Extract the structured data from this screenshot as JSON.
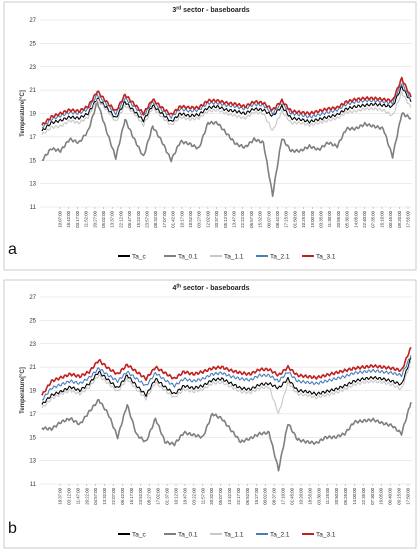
{
  "chart_data": [
    {
      "type": "line",
      "title": "3rd sector - baseboards",
      "title_parts": {
        "num": "3",
        "sup": "rd",
        "rest": " sector - baseboards"
      },
      "panel_label": "a",
      "ylabel": "Temperature[°C]",
      "ylim": [
        11,
        27
      ],
      "yticks": [
        "11",
        "13",
        "15",
        "17",
        "19",
        "21",
        "23",
        "25",
        "27"
      ],
      "grid": true,
      "legend_position": "bottom",
      "x_tick_labels": [
        "10:07:00",
        "18:42:00",
        "03:17:00",
        "11:52:00",
        "20:27:00",
        "05:02:00",
        "13:37:00",
        "22:12:00",
        "06:47:00",
        "15:22:00",
        "23:57:00",
        "08:32:00",
        "17:07:00",
        "01:42:00",
        "10:17:00",
        "18:52:00",
        "03:27:00",
        "12:02:00",
        "20:37:00",
        "05:12:00",
        "13:47:00",
        "22:22:00",
        "06:57:00",
        "15:32:00",
        "00:07:00",
        "08:42:00",
        "17:15:00",
        "01:50:00",
        "10:25:00",
        "19:00:00",
        "03:35:00",
        "11:30:00",
        "20:55:00",
        "05:30:00",
        "14:05:00",
        "22:40:00",
        "07:35:00",
        "16:10:00",
        "00:45:00",
        "09:20:00",
        "17:55:00"
      ],
      "series": [
        {
          "name": "Ta_c",
          "color": "#000000",
          "values": [
            17.5,
            18.2,
            18.4,
            18.7,
            18.6,
            19.0,
            20.3,
            19.5,
            18.6,
            20.0,
            19.2,
            18.4,
            19.7,
            19.0,
            18.3,
            19.0,
            18.8,
            18.9,
            19.5,
            19.6,
            19.3,
            19.2,
            19.0,
            19.4,
            19.3,
            18.8,
            19.6,
            18.6,
            18.5,
            18.3,
            18.5,
            18.7,
            18.9,
            19.4,
            19.6,
            19.7,
            19.8,
            19.7,
            19.6,
            21.3,
            20.0
          ]
        },
        {
          "name": "Ta_0.1",
          "color": "#7f7f7f",
          "values": [
            15.0,
            16.0,
            15.8,
            16.8,
            16.5,
            17.5,
            20.0,
            17.5,
            15.2,
            18.5,
            16.8,
            15.3,
            17.9,
            16.6,
            15.0,
            16.6,
            16.4,
            16.0,
            18.2,
            18.2,
            17.3,
            16.4,
            16.1,
            16.8,
            16.5,
            12.0,
            16.9,
            15.8,
            15.8,
            16.2,
            15.9,
            16.5,
            16.2,
            17.7,
            17.7,
            18.1,
            17.9,
            17.7,
            15.3,
            19.0,
            18.6
          ]
        },
        {
          "name": "Ta_1.1",
          "color": "#c8c8c8",
          "values": [
            17.2,
            17.8,
            17.9,
            18.4,
            18.2,
            18.7,
            20.2,
            19.3,
            18.3,
            19.7,
            19.0,
            18.0,
            19.5,
            18.7,
            18.0,
            18.7,
            18.5,
            18.6,
            19.2,
            19.3,
            19.0,
            18.8,
            18.6,
            19.1,
            19.0,
            17.5,
            19.2,
            18.2,
            18.2,
            18.0,
            18.2,
            18.4,
            18.6,
            19.1,
            19.2,
            19.4,
            19.4,
            19.3,
            18.8,
            20.8,
            19.5
          ]
        },
        {
          "name": "Ta_2.1",
          "color": "#4a7ebb",
          "values": [
            17.8,
            18.5,
            18.8,
            19.1,
            19.0,
            19.4,
            20.6,
            19.8,
            19.0,
            20.3,
            19.6,
            18.8,
            20.0,
            19.3,
            18.7,
            19.4,
            19.2,
            19.3,
            19.9,
            19.9,
            19.7,
            19.6,
            19.4,
            19.8,
            19.7,
            19.0,
            19.9,
            19.0,
            18.9,
            18.7,
            18.9,
            19.1,
            19.3,
            19.8,
            20.0,
            20.1,
            20.1,
            20.0,
            19.9,
            21.6,
            20.2
          ]
        },
        {
          "name": "Ta_3.1",
          "color": "#c0201e",
          "values": [
            18.0,
            18.7,
            19.0,
            19.3,
            19.2,
            19.6,
            20.9,
            20.0,
            19.2,
            20.6,
            19.8,
            19.0,
            20.2,
            19.5,
            18.9,
            19.6,
            19.5,
            19.5,
            20.1,
            20.1,
            19.9,
            19.8,
            19.6,
            20.0,
            19.9,
            19.3,
            20.1,
            19.2,
            19.1,
            19.0,
            19.2,
            19.4,
            19.5,
            20.0,
            20.2,
            20.3,
            20.3,
            20.2,
            20.1,
            22.0,
            20.4
          ]
        }
      ]
    },
    {
      "type": "line",
      "title": "4th sector - baseboards",
      "title_parts": {
        "num": "4",
        "sup": "th",
        "rest": " sector - baseboards"
      },
      "panel_label": "b",
      "ylabel": "Temperature[°C]",
      "ylim": [
        11,
        27
      ],
      "yticks": [
        "11",
        "13",
        "15",
        "17",
        "19",
        "21",
        "23",
        "25",
        "27"
      ],
      "grid": true,
      "legend_position": "bottom",
      "x_tick_labels": [
        "18:37:00",
        "03:12:00",
        "11:47:00",
        "20:22:00",
        "04:57:00",
        "13:32:00",
        "22:07:00",
        "06:42:00",
        "15:17:00",
        "23:52:00",
        "08:27:00",
        "17:02:00",
        "01:37:00",
        "10:12:00",
        "18:47:00",
        "03:22:00",
        "11:57:00",
        "20:32:00",
        "05:07:00",
        "13:42:00",
        "22:17:00",
        "06:52:00",
        "15:27:00",
        "00:02:00",
        "08:37:00",
        "17:10:00",
        "01:45:00",
        "10:20:00",
        "18:55:00",
        "03:30:00",
        "11:25:00",
        "20:50:00",
        "05:25:00",
        "14:00:00",
        "22:35:00",
        "07:30:00",
        "16:05:00",
        "00:40:00",
        "09:15:00",
        "17:50:00"
      ],
      "series": [
        {
          "name": "Ta_c",
          "color": "#000000",
          "values": [
            17.8,
            18.6,
            18.9,
            19.3,
            19.0,
            19.6,
            20.6,
            19.9,
            19.2,
            20.3,
            19.4,
            18.6,
            20.0,
            19.3,
            18.7,
            19.4,
            19.2,
            19.4,
            19.9,
            20.0,
            19.6,
            19.2,
            19.1,
            19.5,
            19.6,
            19.2,
            20.0,
            19.0,
            18.9,
            18.7,
            18.9,
            19.1,
            19.4,
            19.8,
            20.0,
            20.1,
            20.0,
            19.8,
            19.5,
            21.8
          ]
        },
        {
          "name": "Ta_0.1",
          "color": "#7f7f7f",
          "values": [
            15.8,
            15.7,
            16.3,
            16.6,
            16.1,
            17.2,
            18.2,
            17.0,
            15.0,
            17.8,
            15.2,
            14.6,
            16.6,
            14.6,
            14.4,
            15.4,
            15.2,
            15.0,
            17.0,
            16.6,
            15.6,
            14.6,
            14.9,
            15.3,
            15.4,
            12.2,
            16.2,
            14.8,
            14.6,
            14.5,
            15.0,
            15.0,
            15.3,
            16.3,
            16.4,
            16.5,
            16.2,
            16.0,
            15.3,
            18.0
          ]
        },
        {
          "name": "Ta_1.1",
          "color": "#c8c8c8",
          "values": [
            17.5,
            18.3,
            18.7,
            19.0,
            18.7,
            19.3,
            20.3,
            19.6,
            18.9,
            20.0,
            19.1,
            18.3,
            19.7,
            19.0,
            18.4,
            19.1,
            18.9,
            19.1,
            19.6,
            19.7,
            19.3,
            18.9,
            18.8,
            19.2,
            19.3,
            17.0,
            19.7,
            18.7,
            18.6,
            18.4,
            18.6,
            18.8,
            19.1,
            19.5,
            19.7,
            19.8,
            19.7,
            19.5,
            19.1,
            21.5
          ]
        },
        {
          "name": "Ta_2.1",
          "color": "#4a7ebb",
          "values": [
            18.2,
            19.2,
            19.5,
            19.8,
            19.6,
            20.1,
            20.9,
            20.3,
            19.8,
            20.6,
            20.0,
            19.4,
            20.5,
            19.9,
            19.4,
            20.0,
            19.8,
            20.0,
            20.4,
            20.5,
            20.2,
            20.0,
            19.9,
            20.3,
            20.3,
            19.8,
            20.6,
            19.8,
            19.7,
            19.6,
            19.8,
            20.0,
            20.2,
            20.5,
            20.6,
            20.7,
            20.6,
            20.5,
            20.3,
            22.0
          ]
        },
        {
          "name": "Ta_3.1",
          "color": "#c0201e",
          "values": [
            18.6,
            19.8,
            20.1,
            20.4,
            20.2,
            20.6,
            21.6,
            20.9,
            20.4,
            21.2,
            20.6,
            20.0,
            21.0,
            20.5,
            20.0,
            20.6,
            20.4,
            20.6,
            20.9,
            21.0,
            20.7,
            20.5,
            20.4,
            20.8,
            20.8,
            20.3,
            21.0,
            20.3,
            20.2,
            20.1,
            20.3,
            20.5,
            20.7,
            20.9,
            21.0,
            21.1,
            21.0,
            20.9,
            20.7,
            22.7
          ]
        }
      ]
    }
  ]
}
